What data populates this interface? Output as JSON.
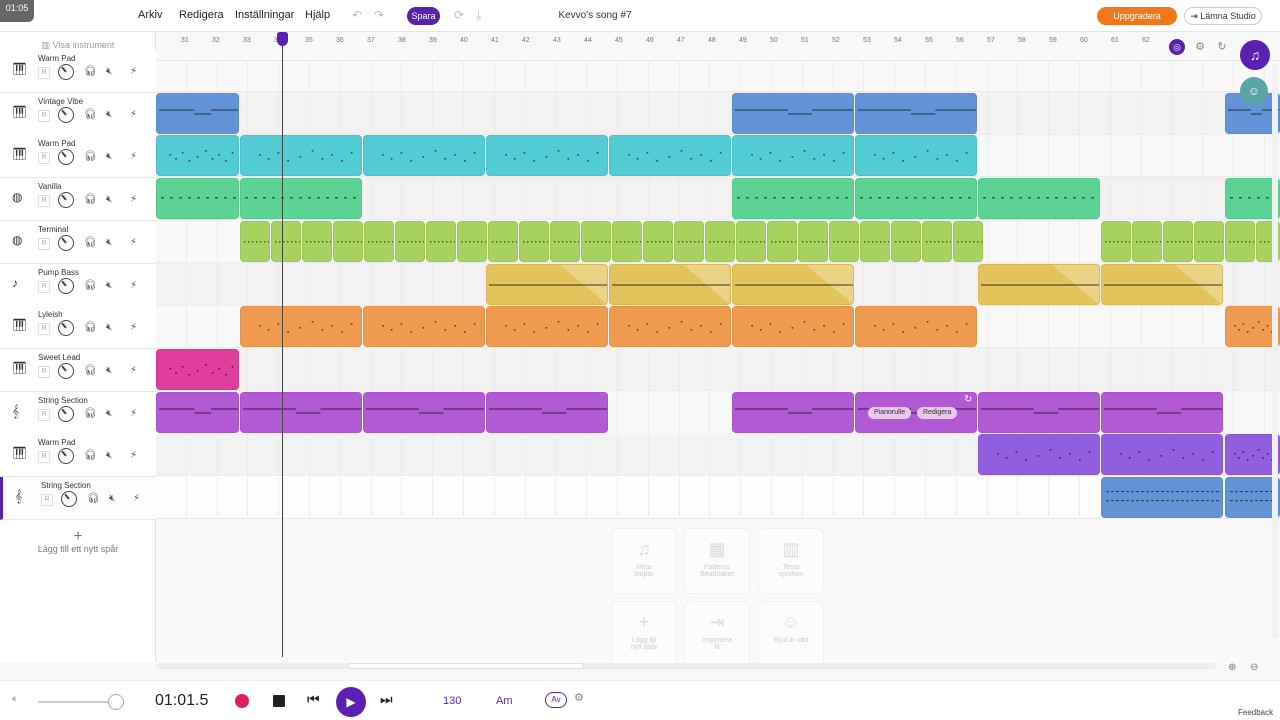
{
  "timer": "01:05",
  "menu": [
    "Arkiv",
    "Redigera",
    "Inställningar",
    "Hjälp"
  ],
  "save_label": "Spara",
  "song_title": "Kevvo's song #7",
  "upgrade_label": "Uppgradera",
  "leave_label": "Lämna Studio",
  "show_instruments": "Visa instrument",
  "tracks": [
    {
      "name": "Warm Pad",
      "icon": "keyboard-icon"
    },
    {
      "name": "Vintage Vibe",
      "icon": "keyboard-icon"
    },
    {
      "name": "Warm Pad",
      "icon": "keyboard-icon"
    },
    {
      "name": "Vanilla",
      "icon": "drum-icon"
    },
    {
      "name": "Terminal",
      "icon": "drum-icon"
    },
    {
      "name": "Pump Bass",
      "icon": "guitar-icon"
    },
    {
      "name": "Lyleish",
      "icon": "keyboard-icon"
    },
    {
      "name": "Sweet Lead",
      "icon": "keyboard-icon"
    },
    {
      "name": "String Section",
      "icon": "violin-icon"
    },
    {
      "name": "Warm Pad",
      "icon": "keyboard-icon"
    },
    {
      "name": "String Section",
      "icon": "violin-icon"
    }
  ],
  "track_r_label": "R",
  "add_track_label": "Lägg till ett nytt spår",
  "ruler_ticks": [
    "31",
    "32",
    "33",
    "34",
    "35",
    "36",
    "37",
    "38",
    "39",
    "40",
    "41",
    "42",
    "43",
    "44",
    "45",
    "46",
    "47",
    "48",
    "49",
    "50",
    "51",
    "52",
    "53",
    "54",
    "55",
    "56",
    "57",
    "58",
    "59",
    "60",
    "61",
    "62"
  ],
  "colors": {
    "blue": "#6394d8",
    "cyan": "#52ccd4",
    "green": "#5cd394",
    "lime": "#a7d25f",
    "yellow": "#e3c45c",
    "orange": "#ee9b4f",
    "pink": "#df3e9c",
    "purple": "#b15ad4",
    "violet": "#915ee0",
    "brand": "#5a1fb3",
    "accent": "#f07818"
  },
  "clip_pills": {
    "pianoroll": "Pianorulle",
    "edit": "Redigera"
  },
  "tiles": [
    {
      "label1": "Hitta",
      "label2": "loopar",
      "icon": "music-note-icon"
    },
    {
      "label1": "Patterns",
      "label2": "Beatmaker",
      "icon": "grid-icon"
    },
    {
      "label1": "Testa",
      "label2": "synthen",
      "icon": "piano-icon"
    },
    {
      "label1": "Lägg till",
      "label2": "nytt spår",
      "icon": "plus-icon"
    },
    {
      "label1": "Importera",
      "label2": "fil",
      "icon": "import-icon"
    },
    {
      "label1": "Bjud in vän",
      "label2": "",
      "icon": "invite-icon"
    }
  ],
  "transport": {
    "time": "01:01.5",
    "tempo": "130",
    "key": "Am",
    "av": "Av"
  },
  "feedback": "Feedback"
}
